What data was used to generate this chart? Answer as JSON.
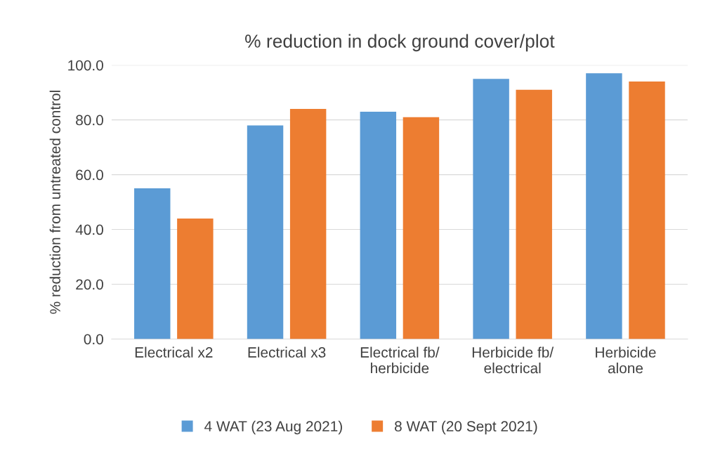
{
  "chart_data": {
    "type": "bar",
    "title": "% reduction in dock ground cover/plot",
    "ylabel": "% reduction from untreated control",
    "categories": [
      "Electrical x2",
      "Electrical x3",
      "Electrical fb/\nherbicide",
      "Herbicide fb/\nelectrical",
      "Herbicide\nalone"
    ],
    "series": [
      {
        "name": "4 WAT (23 Aug 2021)",
        "color": "#5b9bd5",
        "values": [
          55,
          78,
          83,
          95,
          97
        ]
      },
      {
        "name": "8 WAT (20 Sept 2021)",
        "color": "#ed7d31",
        "values": [
          44,
          84,
          81,
          91,
          94
        ]
      }
    ],
    "ylim": [
      0,
      100
    ],
    "yticks": [
      {
        "value": 0,
        "label": "0.0"
      },
      {
        "value": 20,
        "label": "20.0"
      },
      {
        "value": 40,
        "label": "40.0"
      },
      {
        "value": 60,
        "label": "60.0"
      },
      {
        "value": 80,
        "label": "80.0"
      },
      {
        "value": 100,
        "label": "100.0"
      }
    ],
    "grid": "y",
    "legend": "bottom"
  }
}
